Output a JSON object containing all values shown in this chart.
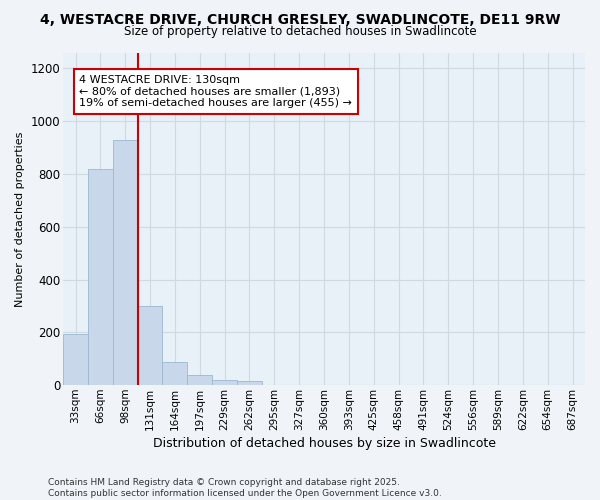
{
  "title_line1": "4, WESTACRE DRIVE, CHURCH GRESLEY, SWADLINCOTE, DE11 9RW",
  "title_line2": "Size of property relative to detached houses in Swadlincote",
  "xlabel": "Distribution of detached houses by size in Swadlincote",
  "ylabel": "Number of detached properties",
  "categories": [
    "33sqm",
    "66sqm",
    "98sqm",
    "131sqm",
    "164sqm",
    "197sqm",
    "229sqm",
    "262sqm",
    "295sqm",
    "327sqm",
    "360sqm",
    "393sqm",
    "425sqm",
    "458sqm",
    "491sqm",
    "524sqm",
    "556sqm",
    "589sqm",
    "622sqm",
    "654sqm",
    "687sqm"
  ],
  "values": [
    195,
    820,
    930,
    300,
    88,
    38,
    20,
    14,
    0,
    0,
    0,
    0,
    0,
    0,
    0,
    0,
    0,
    0,
    0,
    0,
    0
  ],
  "bar_color": "#c8d8ea",
  "bar_edge_color": "#9ab8d0",
  "grid_color": "#d0d8e0",
  "background_color": "#f0f4f8",
  "plot_bg_color": "#e8f0f8",
  "vline_x": 2.5,
  "vline_color": "#cc0000",
  "annotation_text": "4 WESTACRE DRIVE: 130sqm\n← 80% of detached houses are smaller (1,893)\n19% of semi-detached houses are larger (455) →",
  "annotation_box_color": "#ffffff",
  "annotation_box_edge": "#cc0000",
  "ylim": [
    0,
    1260
  ],
  "yticks": [
    0,
    200,
    400,
    600,
    800,
    1000,
    1200
  ],
  "footnote": "Contains HM Land Registry data © Crown copyright and database right 2025.\nContains public sector information licensed under the Open Government Licence v3.0."
}
